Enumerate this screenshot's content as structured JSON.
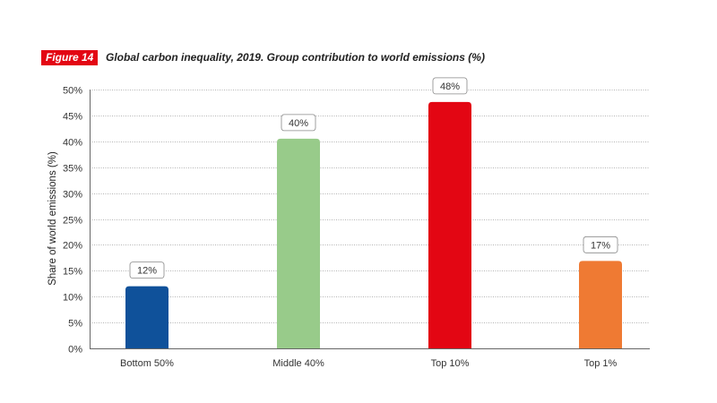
{
  "figure": {
    "badge": "Figure 14",
    "title": "Global carbon inequality, 2019. Group contribution to world emissions (%)"
  },
  "chart_data": {
    "type": "bar",
    "title": "Global carbon inequality, 2019. Group contribution to world emissions (%)",
    "xlabel": "",
    "ylabel": "Share of world emissions (%)",
    "ylim": [
      0,
      50
    ],
    "yticks": [
      0,
      5,
      10,
      15,
      20,
      25,
      30,
      35,
      40,
      45,
      50
    ],
    "ytick_labels": [
      "0%",
      "5%",
      "10%",
      "15%",
      "20%",
      "25%",
      "30%",
      "35%",
      "40%",
      "45%",
      "50%"
    ],
    "grid": true,
    "categories": [
      "Bottom 50%",
      "Middle 40%",
      "Top 10%",
      "Top 1%"
    ],
    "values": [
      12,
      40.5,
      47.6,
      16.9
    ],
    "data_labels": [
      "12%",
      "40%",
      "48%",
      "17%"
    ],
    "colors": [
      "#0f519a",
      "#98cb8a",
      "#e30613",
      "#ef7a33"
    ]
  }
}
